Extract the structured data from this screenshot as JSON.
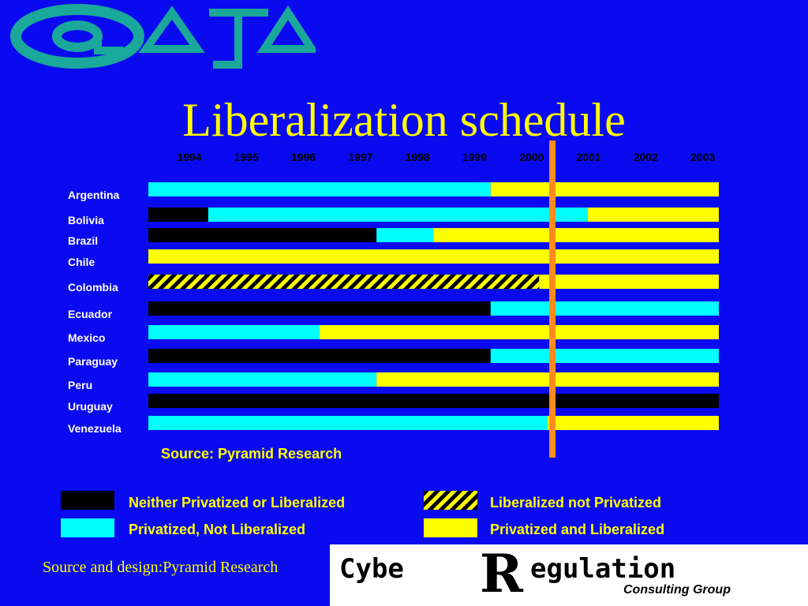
{
  "slide": {
    "source_note": "Source: Pyramid Research",
    "footer_source": "Source and design:Pyramid Research"
  },
  "colors": {
    "background": "#0a0af0",
    "neither": "#000000",
    "privatized_not_liberalized": "#00ffff",
    "liberalized_not_privatized_stripe_a": "#000000",
    "liberalized_not_privatized_stripe_b": "#ffff00",
    "privatized_and_liberalized": "#ffff00",
    "current_marker": "#ff8c1a",
    "title": "#ffff00"
  },
  "legend": [
    {
      "key": "neither",
      "label": "Neither Privatized or Liberalized"
    },
    {
      "key": "privatized_not_liberalized",
      "label": "Privatized, Not Liberalized"
    },
    {
      "key": "liberalized_not_privatized",
      "label": "Liberalized not Privatized"
    },
    {
      "key": "privatized_and_liberalized",
      "label": "Privatized and Liberalized"
    }
  ],
  "logos": {
    "top_left_text": "@ATA",
    "bottom_right_text": "CybeRegulation",
    "bottom_right_subtext": "Consulting Group"
  },
  "chart_data": {
    "type": "bar",
    "orientation": "horizontal-stacked-timeline",
    "title": "Liberalization schedule",
    "x_ticks": [
      "1994",
      "1995",
      "1996",
      "1997",
      "1998",
      "1999",
      "2000",
      "2001",
      "2002",
      "2003"
    ],
    "x_range": [
      1994,
      2004
    ],
    "current_marker_year": 2001,
    "categories": [
      "Argentina",
      "Bolivia",
      "Brazil",
      "Chile",
      "Colombia",
      "Ecuador",
      "Mexico",
      "Paraguay",
      "Peru",
      "Uruguay",
      "Venezuela"
    ],
    "rows": [
      {
        "country": "Argentina",
        "segments": [
          {
            "state": "privatized_not_liberalized",
            "from": 1994,
            "to": 2000.0
          },
          {
            "state": "privatized_and_liberalized",
            "from": 2000.0,
            "to": 2004
          }
        ]
      },
      {
        "country": "Bolivia",
        "segments": [
          {
            "state": "neither",
            "from": 1994,
            "to": 1995.05
          },
          {
            "state": "privatized_not_liberalized",
            "from": 1995.05,
            "to": 2001.7
          },
          {
            "state": "privatized_and_liberalized",
            "from": 2001.7,
            "to": 2004
          }
        ]
      },
      {
        "country": "Brazil",
        "segments": [
          {
            "state": "neither",
            "from": 1994,
            "to": 1998.0
          },
          {
            "state": "privatized_not_liberalized",
            "from": 1998.0,
            "to": 1999.0
          },
          {
            "state": "privatized_and_liberalized",
            "from": 1999.0,
            "to": 2004
          }
        ]
      },
      {
        "country": "Chile",
        "segments": [
          {
            "state": "privatized_and_liberalized",
            "from": 1994,
            "to": 2004
          }
        ]
      },
      {
        "country": "Colombia",
        "segments": [
          {
            "state": "liberalized_not_privatized",
            "from": 1994,
            "to": 2000.85
          },
          {
            "state": "privatized_and_liberalized",
            "from": 2000.85,
            "to": 2004
          }
        ]
      },
      {
        "country": "Ecuador",
        "segments": [
          {
            "state": "neither",
            "from": 1994,
            "to": 2000.0
          },
          {
            "state": "privatized_not_liberalized",
            "from": 2000.0,
            "to": 2004
          }
        ]
      },
      {
        "country": "Mexico",
        "segments": [
          {
            "state": "privatized_not_liberalized",
            "from": 1994,
            "to": 1997.0
          },
          {
            "state": "privatized_and_liberalized",
            "from": 1997.0,
            "to": 2004
          }
        ]
      },
      {
        "country": "Paraguay",
        "segments": [
          {
            "state": "neither",
            "from": 1994,
            "to": 2000.0
          },
          {
            "state": "privatized_not_liberalized",
            "from": 2000.0,
            "to": 2004
          }
        ]
      },
      {
        "country": "Peru",
        "segments": [
          {
            "state": "privatized_not_liberalized",
            "from": 1994,
            "to": 1998.0
          },
          {
            "state": "privatized_and_liberalized",
            "from": 1998.0,
            "to": 2004
          }
        ]
      },
      {
        "country": "Uruguay",
        "segments": [
          {
            "state": "neither",
            "from": 1994,
            "to": 2004
          }
        ]
      },
      {
        "country": "Venezuela",
        "segments": [
          {
            "state": "privatized_not_liberalized",
            "from": 1994,
            "to": 2001.0
          },
          {
            "state": "privatized_and_liberalized",
            "from": 2001.0,
            "to": 2004
          }
        ]
      }
    ]
  }
}
